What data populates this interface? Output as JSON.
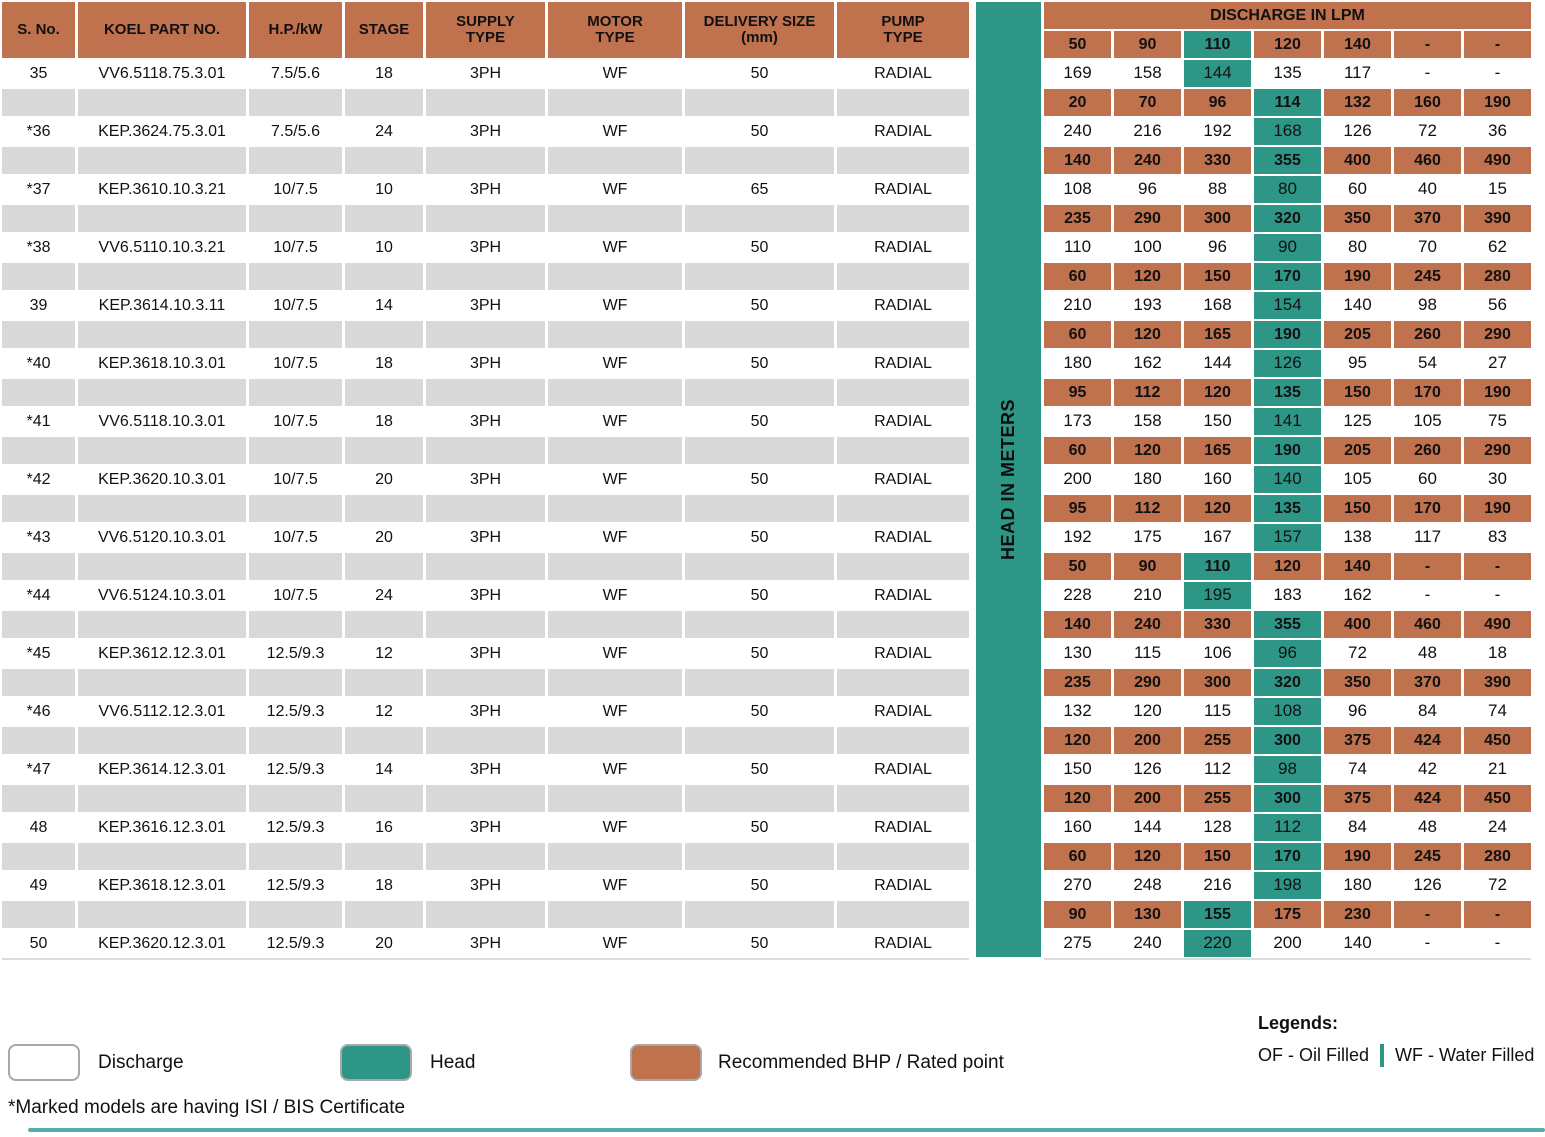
{
  "colors": {
    "orange": "#C0714E",
    "teal": "#2E9687",
    "gray": "#D9D9D9",
    "bottom_line": "#58ADA9"
  },
  "head_bar_label": "HEAD IN METERS",
  "left_table": {
    "headers": [
      "S. No.",
      "KOEL PART NO.",
      "H.P./kW",
      "STAGE",
      "SUPPLY\nTYPE",
      "MOTOR\nTYPE",
      "DELIVERY SIZE\n(mm)",
      "PUMP\nTYPE"
    ],
    "rows": [
      {
        "s_no": "35",
        "part_no": "VV6.5118.75.3.01",
        "hp_kw": "7.5/5.6",
        "stage": "18",
        "supply": "3PH",
        "motor": "WF",
        "delivery": "50",
        "pump_type": "RADIAL"
      },
      {
        "s_no": "*36",
        "part_no": "KEP.3624.75.3.01",
        "hp_kw": "7.5/5.6",
        "stage": "24",
        "supply": "3PH",
        "motor": "WF",
        "delivery": "50",
        "pump_type": "RADIAL"
      },
      {
        "s_no": "*37",
        "part_no": "KEP.3610.10.3.21",
        "hp_kw": "10/7.5",
        "stage": "10",
        "supply": "3PH",
        "motor": "WF",
        "delivery": "65",
        "pump_type": "RADIAL"
      },
      {
        "s_no": "*38",
        "part_no": "VV6.5110.10.3.21",
        "hp_kw": "10/7.5",
        "stage": "10",
        "supply": "3PH",
        "motor": "WF",
        "delivery": "50",
        "pump_type": "RADIAL"
      },
      {
        "s_no": "39",
        "part_no": "KEP.3614.10.3.11",
        "hp_kw": "10/7.5",
        "stage": "14",
        "supply": "3PH",
        "motor": "WF",
        "delivery": "50",
        "pump_type": "RADIAL"
      },
      {
        "s_no": "*40",
        "part_no": "KEP.3618.10.3.01",
        "hp_kw": "10/7.5",
        "stage": "18",
        "supply": "3PH",
        "motor": "WF",
        "delivery": "50",
        "pump_type": "RADIAL"
      },
      {
        "s_no": "*41",
        "part_no": "VV6.5118.10.3.01",
        "hp_kw": "10/7.5",
        "stage": "18",
        "supply": "3PH",
        "motor": "WF",
        "delivery": "50",
        "pump_type": "RADIAL"
      },
      {
        "s_no": "*42",
        "part_no": "KEP.3620.10.3.01",
        "hp_kw": "10/7.5",
        "stage": "20",
        "supply": "3PH",
        "motor": "WF",
        "delivery": "50",
        "pump_type": "RADIAL"
      },
      {
        "s_no": "*43",
        "part_no": "VV6.5120.10.3.01",
        "hp_kw": "10/7.5",
        "stage": "20",
        "supply": "3PH",
        "motor": "WF",
        "delivery": "50",
        "pump_type": "RADIAL"
      },
      {
        "s_no": "*44",
        "part_no": "VV6.5124.10.3.01",
        "hp_kw": "10/7.5",
        "stage": "24",
        "supply": "3PH",
        "motor": "WF",
        "delivery": "50",
        "pump_type": "RADIAL"
      },
      {
        "s_no": "*45",
        "part_no": "KEP.3612.12.3.01",
        "hp_kw": "12.5/9.3",
        "stage": "12",
        "supply": "3PH",
        "motor": "WF",
        "delivery": "50",
        "pump_type": "RADIAL"
      },
      {
        "s_no": "*46",
        "part_no": "VV6.5112.12.3.01",
        "hp_kw": "12.5/9.3",
        "stage": "12",
        "supply": "3PH",
        "motor": "WF",
        "delivery": "50",
        "pump_type": "RADIAL"
      },
      {
        "s_no": "*47",
        "part_no": "KEP.3614.12.3.01",
        "hp_kw": "12.5/9.3",
        "stage": "14",
        "supply": "3PH",
        "motor": "WF",
        "delivery": "50",
        "pump_type": "RADIAL"
      },
      {
        "s_no": "48",
        "part_no": "KEP.3616.12.3.01",
        "hp_kw": "12.5/9.3",
        "stage": "16",
        "supply": "3PH",
        "motor": "WF",
        "delivery": "50",
        "pump_type": "RADIAL"
      },
      {
        "s_no": "49",
        "part_no": "KEP.3618.12.3.01",
        "hp_kw": "12.5/9.3",
        "stage": "18",
        "supply": "3PH",
        "motor": "WF",
        "delivery": "50",
        "pump_type": "RADIAL"
      },
      {
        "s_no": "50",
        "part_no": "KEP.3620.12.3.01",
        "hp_kw": "12.5/9.3",
        "stage": "20",
        "supply": "3PH",
        "motor": "WF",
        "delivery": "50",
        "pump_type": "RADIAL"
      }
    ]
  },
  "discharge_table": {
    "title": "DISCHARGE IN LPM",
    "pumps": [
      {
        "discharge": [
          "50",
          "90",
          "110",
          "120",
          "140",
          "-",
          "-"
        ],
        "head": [
          "169",
          "158",
          "144",
          "135",
          "117",
          "-",
          "-"
        ],
        "rated_col": 2
      },
      {
        "discharge": [
          "20",
          "70",
          "96",
          "114",
          "132",
          "160",
          "190"
        ],
        "head": [
          "240",
          "216",
          "192",
          "168",
          "126",
          "72",
          "36"
        ],
        "rated_col": 3
      },
      {
        "discharge": [
          "140",
          "240",
          "330",
          "355",
          "400",
          "460",
          "490"
        ],
        "head": [
          "108",
          "96",
          "88",
          "80",
          "60",
          "40",
          "15"
        ],
        "rated_col": 3
      },
      {
        "discharge": [
          "235",
          "290",
          "300",
          "320",
          "350",
          "370",
          "390"
        ],
        "head": [
          "110",
          "100",
          "96",
          "90",
          "80",
          "70",
          "62"
        ],
        "rated_col": 3
      },
      {
        "discharge": [
          "60",
          "120",
          "150",
          "170",
          "190",
          "245",
          "280"
        ],
        "head": [
          "210",
          "193",
          "168",
          "154",
          "140",
          "98",
          "56"
        ],
        "rated_col": 3
      },
      {
        "discharge": [
          "60",
          "120",
          "165",
          "190",
          "205",
          "260",
          "290"
        ],
        "head": [
          "180",
          "162",
          "144",
          "126",
          "95",
          "54",
          "27"
        ],
        "rated_col": 3
      },
      {
        "discharge": [
          "95",
          "112",
          "120",
          "135",
          "150",
          "170",
          "190"
        ],
        "head": [
          "173",
          "158",
          "150",
          "141",
          "125",
          "105",
          "75"
        ],
        "rated_col": 3
      },
      {
        "discharge": [
          "60",
          "120",
          "165",
          "190",
          "205",
          "260",
          "290"
        ],
        "head": [
          "200",
          "180",
          "160",
          "140",
          "105",
          "60",
          "30"
        ],
        "rated_col": 3
      },
      {
        "discharge": [
          "95",
          "112",
          "120",
          "135",
          "150",
          "170",
          "190"
        ],
        "head": [
          "192",
          "175",
          "167",
          "157",
          "138",
          "117",
          "83"
        ],
        "rated_col": 3
      },
      {
        "discharge": [
          "50",
          "90",
          "110",
          "120",
          "140",
          "-",
          "-"
        ],
        "head": [
          "228",
          "210",
          "195",
          "183",
          "162",
          "-",
          "-"
        ],
        "rated_col": 2
      },
      {
        "discharge": [
          "140",
          "240",
          "330",
          "355",
          "400",
          "460",
          "490"
        ],
        "head": [
          "130",
          "115",
          "106",
          "96",
          "72",
          "48",
          "18"
        ],
        "rated_col": 3
      },
      {
        "discharge": [
          "235",
          "290",
          "300",
          "320",
          "350",
          "370",
          "390"
        ],
        "head": [
          "132",
          "120",
          "115",
          "108",
          "96",
          "84",
          "74"
        ],
        "rated_col": 3
      },
      {
        "discharge": [
          "120",
          "200",
          "255",
          "300",
          "375",
          "424",
          "450"
        ],
        "head": [
          "150",
          "126",
          "112",
          "98",
          "74",
          "42",
          "21"
        ],
        "rated_col": 3
      },
      {
        "discharge": [
          "120",
          "200",
          "255",
          "300",
          "375",
          "424",
          "450"
        ],
        "head": [
          "160",
          "144",
          "128",
          "112",
          "84",
          "48",
          "24"
        ],
        "rated_col": 3
      },
      {
        "discharge": [
          "60",
          "120",
          "150",
          "170",
          "190",
          "245",
          "280"
        ],
        "head": [
          "270",
          "248",
          "216",
          "198",
          "180",
          "126",
          "72"
        ],
        "rated_col": 3
      },
      {
        "discharge": [
          "90",
          "130",
          "155",
          "175",
          "230",
          "-",
          "-"
        ],
        "head": [
          "275",
          "240",
          "220",
          "200",
          "140",
          "-",
          "-"
        ],
        "rated_col": 2
      }
    ]
  },
  "legend": {
    "discharge_label": "Discharge",
    "head_label": "Head",
    "bhp_label": "Recommended BHP / Rated point",
    "legends_title": "Legends:",
    "of_label": "OF  - Oil Filled",
    "wf_label": "WF - Water Filled",
    "footnote": "*Marked models are having ISI / BIS Certificate"
  }
}
